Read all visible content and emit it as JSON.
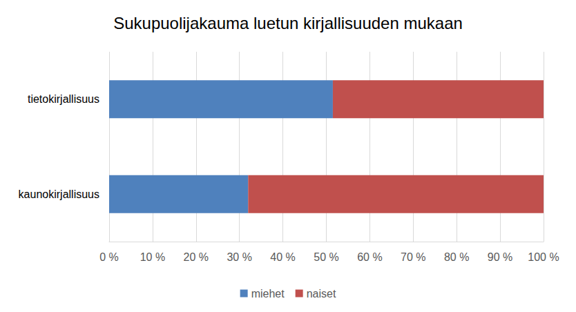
{
  "chart_data": {
    "type": "bar",
    "title": "Sukupuolijakauma luetun kirjallisuuden mukaan",
    "orientation": "horizontal",
    "stacked": true,
    "grid": true,
    "legend": "bottom",
    "categories": [
      "tietokirjallisuus",
      "kaunokirjallisuus"
    ],
    "series": [
      {
        "name": "miehet",
        "color": "#4f81bd",
        "values": [
          51.5,
          32
        ]
      },
      {
        "name": "naiset",
        "color": "#c0504d",
        "values": [
          48.5,
          68
        ]
      }
    ],
    "xlim": [
      0,
      100
    ],
    "xticks": [
      {
        "value": 0,
        "label": "0 %"
      },
      {
        "value": 10,
        "label": "10 %"
      },
      {
        "value": 20,
        "label": "20 %"
      },
      {
        "value": 30,
        "label": "30 %"
      },
      {
        "value": 40,
        "label": "40 %"
      },
      {
        "value": 50,
        "label": "50 %"
      },
      {
        "value": 60,
        "label": "60 %"
      },
      {
        "value": 70,
        "label": "70 %"
      },
      {
        "value": 80,
        "label": "80 %"
      },
      {
        "value": 90,
        "label": "90 %"
      },
      {
        "value": 100,
        "label": "100 %"
      }
    ]
  }
}
